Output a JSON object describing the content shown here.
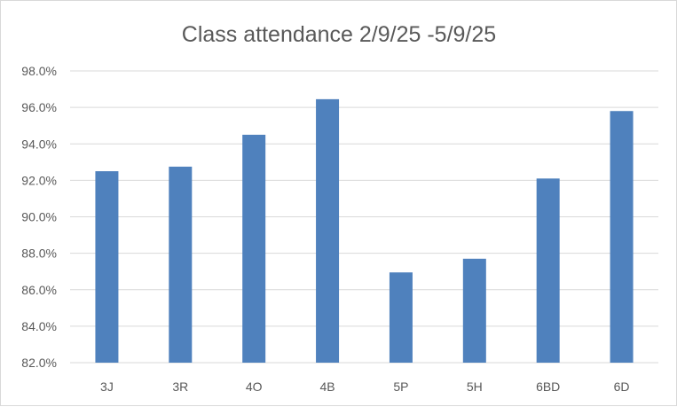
{
  "chart_data": {
    "type": "bar",
    "title": "Class attendance 2/9/25 -5/9/25",
    "xlabel": "",
    "ylabel": "",
    "categories": [
      "3J",
      "3R",
      "4O",
      "4B",
      "5P",
      "5H",
      "6BD",
      "6D"
    ],
    "values": [
      92.5,
      92.75,
      94.5,
      96.45,
      86.95,
      87.7,
      92.1,
      95.8
    ],
    "ylim": [
      82.0,
      98.0
    ],
    "yticks": [
      "82.0%",
      "84.0%",
      "86.0%",
      "88.0%",
      "90.0%",
      "92.0%",
      "94.0%",
      "96.0%",
      "98.0%"
    ],
    "grid": true,
    "legend": "none",
    "bar_color": "#4f81bd"
  }
}
